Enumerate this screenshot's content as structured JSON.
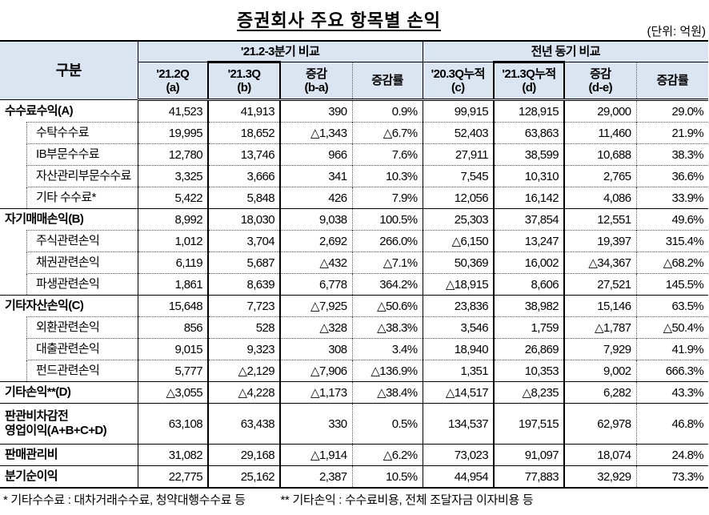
{
  "title": "증권회사 주요 항목별 손익",
  "unit": "(단위: 억원)",
  "header": {
    "category": "구분",
    "group1": "'21.2-3분기 비교",
    "group2": "전년 동기 비교",
    "cols": [
      [
        "'21.2Q",
        "(a)"
      ],
      [
        "'21.3Q",
        "(b)"
      ],
      [
        "증감",
        "(b-a)"
      ],
      [
        "증감률",
        ""
      ],
      [
        "'20.3Q누적",
        "(c)"
      ],
      [
        "'21.3Q누적",
        "(d)"
      ],
      [
        "증감",
        "(d-e)"
      ],
      [
        "증감률",
        ""
      ]
    ]
  },
  "rows": [
    {
      "level": "main",
      "label": "수수료수익(A)",
      "values": [
        "41,523",
        "41,913",
        "390",
        "0.9%",
        "99,915",
        "128,915",
        "29,000",
        "29.0%"
      ]
    },
    {
      "level": "sub",
      "label": "수탁수수료",
      "values": [
        "19,995",
        "18,652",
        "△1,343",
        "△6.7%",
        "52,403",
        "63,863",
        "11,460",
        "21.9%"
      ]
    },
    {
      "level": "sub",
      "label": "IB부문수수료",
      "values": [
        "12,780",
        "13,746",
        "966",
        "7.6%",
        "27,911",
        "38,599",
        "10,688",
        "38.3%"
      ]
    },
    {
      "level": "sub",
      "label": "자산관리부문수수료",
      "values": [
        "3,325",
        "3,666",
        "341",
        "10.3%",
        "7,545",
        "10,310",
        "2,765",
        "36.6%"
      ]
    },
    {
      "level": "sub",
      "label": "기타 수수료*",
      "values": [
        "5,422",
        "5,848",
        "426",
        "7.9%",
        "12,056",
        "16,142",
        "4,086",
        "33.9%"
      ]
    },
    {
      "level": "main",
      "label": "자기매매손익(B)",
      "values": [
        "8,992",
        "18,030",
        "9,038",
        "100.5%",
        "25,303",
        "37,854",
        "12,551",
        "49.6%"
      ]
    },
    {
      "level": "sub",
      "label": "주식관련손익",
      "values": [
        "1,012",
        "3,704",
        "2,692",
        "266.0%",
        "△6,150",
        "13,247",
        "19,397",
        "315.4%"
      ]
    },
    {
      "level": "sub",
      "label": "채권관련손익",
      "values": [
        "6,119",
        "5,687",
        "△432",
        "△7.1%",
        "50,369",
        "16,002",
        "△34,367",
        "△68.2%"
      ]
    },
    {
      "level": "sub",
      "label": "파생관련손익",
      "values": [
        "1,861",
        "8,639",
        "6,778",
        "364.2%",
        "△18,915",
        "8,606",
        "27,521",
        "145.5%"
      ]
    },
    {
      "level": "main",
      "label": "기타자산손익(C)",
      "values": [
        "15,648",
        "7,723",
        "△7,925",
        "△50.6%",
        "23,836",
        "38,982",
        "15,146",
        "63.5%"
      ]
    },
    {
      "level": "sub",
      "label": "외환관련손익",
      "values": [
        "856",
        "528",
        "△328",
        "△38.3%",
        "3,546",
        "1,759",
        "△1,787",
        "△50.4%"
      ]
    },
    {
      "level": "sub",
      "label": "대출관련손익",
      "values": [
        "9,015",
        "9,323",
        "308",
        "3.4%",
        "18,940",
        "26,869",
        "7,929",
        "41.9%"
      ]
    },
    {
      "level": "sub",
      "label": "펀드관련손익",
      "values": [
        "5,777",
        "△2,129",
        "△7,906",
        "△136.9%",
        "1,351",
        "10,353",
        "9,002",
        "666.3%"
      ]
    },
    {
      "level": "main",
      "label": "기타손익**(D)",
      "values": [
        "△3,055",
        "△4,228",
        "△1,173",
        "△38.4%",
        "△14,517",
        "△8,235",
        "6,282",
        "43.3%"
      ]
    },
    {
      "level": "main",
      "label": "판관비차감전",
      "label2": "영업이익(A+B+C+D)",
      "values": [
        "63,108",
        "63,438",
        "330",
        "0.5%",
        "134,537",
        "197,515",
        "62,978",
        "46.8%"
      ]
    },
    {
      "level": "main",
      "label": "판매관리비",
      "values": [
        "31,082",
        "29,168",
        "△1,914",
        "△6.2%",
        "73,023",
        "91,097",
        "18,074",
        "24.8%"
      ]
    },
    {
      "level": "main",
      "label": "분기순이익",
      "values": [
        "22,775",
        "25,162",
        "2,387",
        "10.5%",
        "44,954",
        "77,883",
        "32,929",
        "73.3%"
      ]
    }
  ],
  "footnotes": [
    "* 기타수수료 : 대차거래수수료, 청약대행수수료 등",
    "** 기타손익 : 수수료비용, 전체 조달자금 이자비용 등"
  ],
  "colors": {
    "header_bg": "#dbe5f1"
  }
}
